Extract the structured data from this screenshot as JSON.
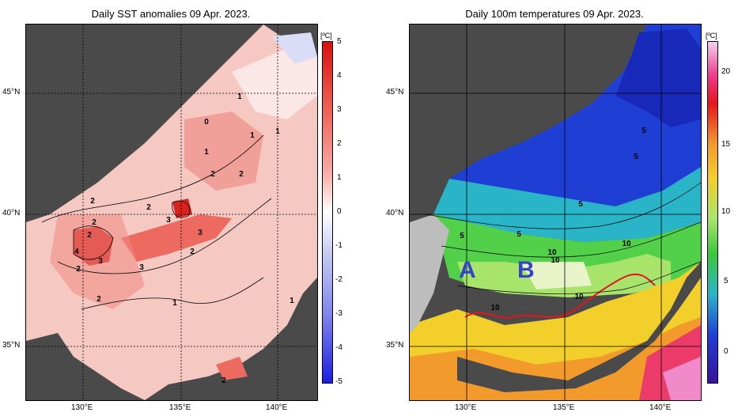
{
  "left_panel": {
    "title": "Daily SST anomalies 09 Apr. 2023.",
    "unit": "[ºC]",
    "colorbar_ticks": [
      "5",
      "4",
      "3",
      "2",
      "1",
      "0",
      "-1",
      "-2",
      "-3",
      "-4",
      "-5"
    ],
    "contour_labels": [
      "0",
      "1",
      "1",
      "1",
      "1",
      "2",
      "2",
      "2",
      "2",
      "2",
      "2",
      "2",
      "3",
      "3",
      "3",
      "3",
      "4",
      "2",
      "2",
      "1",
      "2",
      "1"
    ]
  },
  "right_panel": {
    "title": "Daily 100m temperatures 09 Apr. 2023.",
    "unit": "[ºC]",
    "colorbar_ticks": [
      "20",
      "15",
      "10",
      "5",
      "0"
    ],
    "contour_labels": [
      "5",
      "5",
      "5",
      "5",
      "5",
      "10",
      "10",
      "10",
      "10",
      "10"
    ],
    "region_labels": [
      "A",
      "B"
    ]
  },
  "axes": {
    "lat_labels": [
      "45°N",
      "40°N",
      "35°N"
    ],
    "lon_labels": [
      "130°E",
      "135°E",
      "140°E"
    ]
  },
  "colors": {
    "land": "#4a4a4a",
    "ice_shelf": "#bdbdbd",
    "current_line": "#e8141c",
    "region_label": "#3344c8"
  }
}
